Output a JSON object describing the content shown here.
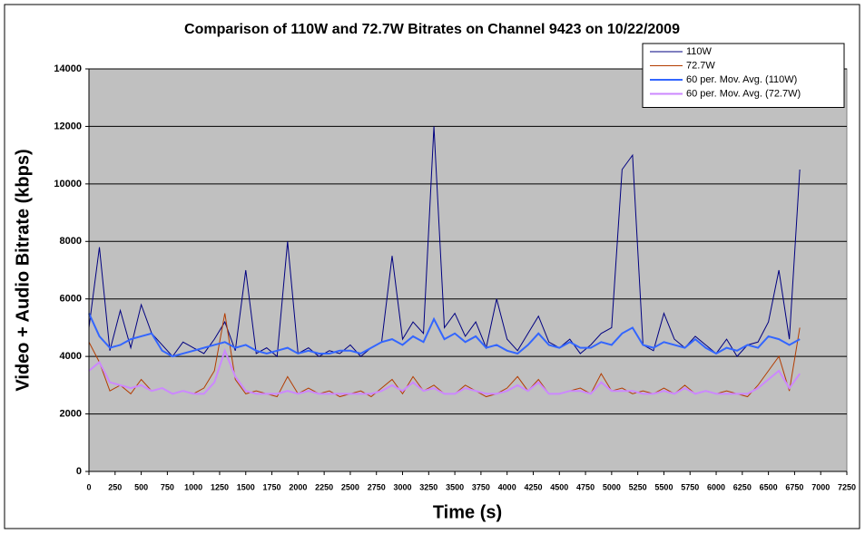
{
  "chart_data": {
    "type": "line",
    "title": "Comparison of 110W and 72.7W Bitrates on Channel 9423 on 10/22/2009",
    "x_label": "Time (s)",
    "y_label": "Video + Audio Bitrate (kbps)",
    "x": [
      0,
      100,
      200,
      300,
      400,
      500,
      600,
      700,
      800,
      900,
      1000,
      1100,
      1200,
      1300,
      1400,
      1500,
      1600,
      1700,
      1800,
      1900,
      2000,
      2100,
      2200,
      2300,
      2400,
      2500,
      2600,
      2700,
      2800,
      2900,
      3000,
      3100,
      3200,
      3300,
      3400,
      3500,
      3600,
      3700,
      3800,
      3900,
      4000,
      4100,
      4200,
      4300,
      4400,
      4500,
      4600,
      4700,
      4800,
      4900,
      5000,
      5100,
      5200,
      5300,
      5400,
      5500,
      5600,
      5700,
      5800,
      5900,
      6000,
      6100,
      6200,
      6300,
      6400,
      6500,
      6600,
      6700,
      6800
    ],
    "series": [
      {
        "name": "110W",
        "color": "#000080",
        "width": 1,
        "values": [
          5000,
          7800,
          4200,
          5600,
          4300,
          5800,
          4800,
          4400,
          4000,
          4500,
          4300,
          4100,
          4600,
          5200,
          4200,
          7000,
          4100,
          4300,
          4000,
          8000,
          4100,
          4300,
          4000,
          4200,
          4100,
          4400,
          4000,
          4300,
          4500,
          7500,
          4600,
          5200,
          4800,
          12000,
          5000,
          5500,
          4700,
          5200,
          4300,
          6000,
          4600,
          4200,
          4800,
          5400,
          4500,
          4300,
          4600,
          4100,
          4400,
          4800,
          5000,
          10500,
          11000,
          4400,
          4200,
          5500,
          4600,
          4300,
          4700,
          4400,
          4100,
          4600,
          4000,
          4400,
          4500,
          5200,
          7000,
          4600,
          10500
        ]
      },
      {
        "name": "72.7W",
        "color": "#b33c00",
        "width": 1,
        "values": [
          4500,
          3800,
          2800,
          3000,
          2700,
          3200,
          2800,
          2900,
          2700,
          2800,
          2700,
          2900,
          3500,
          5500,
          3200,
          2700,
          2800,
          2700,
          2600,
          3300,
          2700,
          2900,
          2700,
          2800,
          2600,
          2700,
          2800,
          2600,
          2900,
          3200,
          2700,
          3300,
          2800,
          3000,
          2700,
          2700,
          3000,
          2800,
          2600,
          2700,
          2900,
          3300,
          2800,
          3200,
          2700,
          2700,
          2800,
          2900,
          2700,
          3400,
          2800,
          2900,
          2700,
          2800,
          2700,
          2900,
          2700,
          3000,
          2700,
          2800,
          2700,
          2800,
          2700,
          2600,
          3000,
          3500,
          4000,
          2800,
          5000
        ]
      },
      {
        "name": "60 per. Mov. Avg. (110W)",
        "color": "#3366ff",
        "width": 2,
        "values": [
          5500,
          4700,
          4300,
          4400,
          4600,
          4700,
          4800,
          4200,
          4000,
          4100,
          4200,
          4300,
          4400,
          4500,
          4300,
          4400,
          4200,
          4100,
          4200,
          4300,
          4100,
          4200,
          4100,
          4100,
          4200,
          4200,
          4100,
          4300,
          4500,
          4600,
          4400,
          4700,
          4500,
          5300,
          4600,
          4800,
          4500,
          4700,
          4300,
          4400,
          4200,
          4100,
          4400,
          4800,
          4400,
          4300,
          4500,
          4300,
          4300,
          4500,
          4400,
          4800,
          5000,
          4400,
          4300,
          4500,
          4400,
          4300,
          4600,
          4300,
          4100,
          4300,
          4200,
          4400,
          4300,
          4700,
          4600,
          4400,
          4600
        ]
      },
      {
        "name": "60 per. Mov. Avg. (72.7W)",
        "color": "#cc88ff",
        "width": 2,
        "values": [
          3500,
          3800,
          3100,
          3000,
          2900,
          3000,
          2800,
          2900,
          2700,
          2800,
          2700,
          2700,
          3100,
          4200,
          3300,
          2800,
          2700,
          2700,
          2700,
          2800,
          2700,
          2800,
          2700,
          2700,
          2700,
          2700,
          2700,
          2700,
          2800,
          3000,
          2800,
          3100,
          2800,
          2900,
          2700,
          2700,
          2900,
          2800,
          2700,
          2700,
          2800,
          3000,
          2800,
          3100,
          2700,
          2700,
          2800,
          2800,
          2700,
          3100,
          2800,
          2800,
          2800,
          2700,
          2700,
          2800,
          2700,
          2900,
          2700,
          2800,
          2700,
          2700,
          2700,
          2700,
          2900,
          3200,
          3500,
          2900,
          3400
        ]
      }
    ],
    "xlim": [
      0,
      7250
    ],
    "xticks": [
      0,
      250,
      500,
      750,
      1000,
      1250,
      1500,
      1750,
      2000,
      2250,
      2500,
      2750,
      3000,
      3250,
      3500,
      3750,
      4000,
      4250,
      4500,
      4750,
      5000,
      5250,
      5500,
      5750,
      6000,
      6250,
      6500,
      6750,
      7000,
      7250
    ],
    "ylim": [
      0,
      14000
    ],
    "yticks": [
      0,
      2000,
      4000,
      6000,
      8000,
      10000,
      12000,
      14000
    ],
    "grid": true,
    "legend": "top-right",
    "plot_background": "#c0c0c0"
  }
}
